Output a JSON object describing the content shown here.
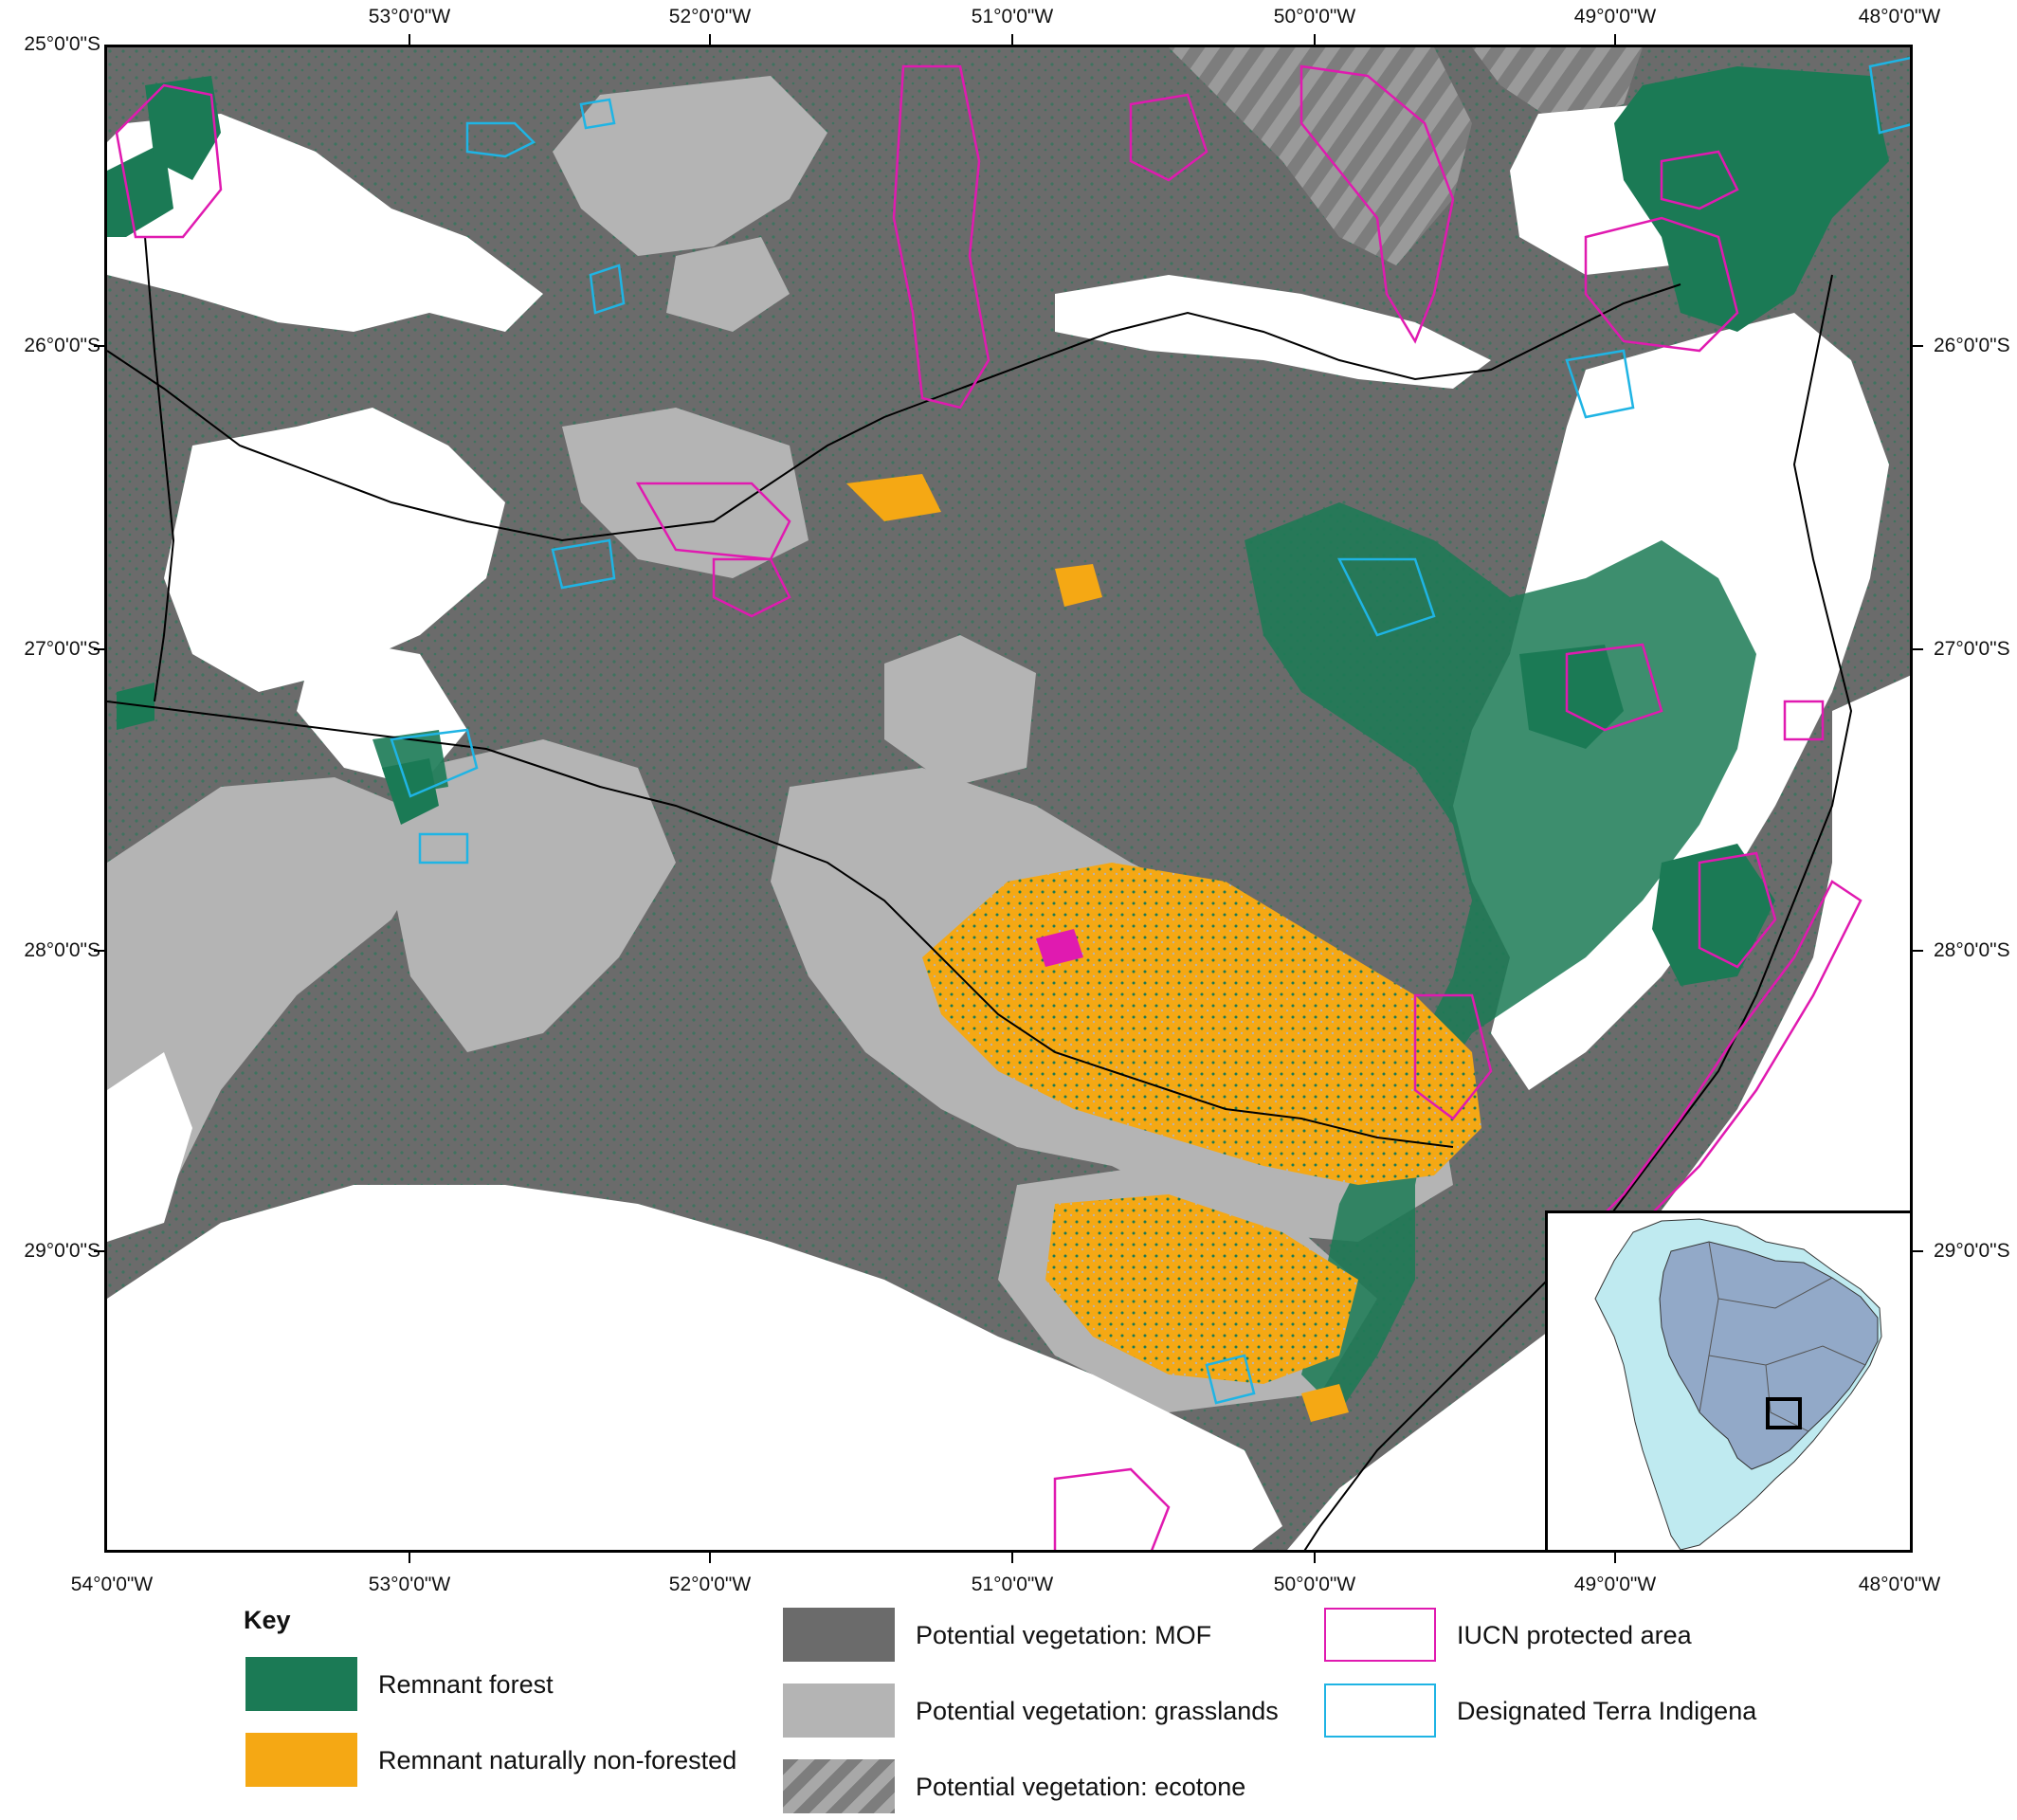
{
  "map": {
    "lon_ticks": [
      "54°0'0\"W",
      "53°0'0\"W",
      "52°0'0\"W",
      "51°0'0\"W",
      "50°0'0\"W",
      "49°0'0\"W",
      "48°0'0\"W"
    ],
    "lat_ticks": [
      "25°0'0\"S",
      "26°0'0\"S",
      "27°0'0\"S",
      "28°0'0\"S",
      "29°0'0\"S"
    ],
    "colors": {
      "remnant_forest": "#1b7a55",
      "remnant_non_forested": "#f5a814",
      "mof": "#6b6b6b",
      "grasslands": "#b4b4b4",
      "iucn": "#e01ab0",
      "terra_indigena": "#1fb4e4"
    }
  },
  "inset": {
    "title": "",
    "highlighted_region": "Brazil",
    "study_area_box": "southern Brazil"
  },
  "legend": {
    "title": "Key",
    "items": [
      {
        "label": "Remnant forest"
      },
      {
        "label": "Remnant naturally non-forested"
      },
      {
        "label": "Potential vegetation: MOF"
      },
      {
        "label": "Potential vegetation: grasslands"
      },
      {
        "label": "Potential vegetation: ecotone"
      },
      {
        "label": "IUCN protected area"
      },
      {
        "label": "Designated Terra Indigena"
      }
    ]
  }
}
